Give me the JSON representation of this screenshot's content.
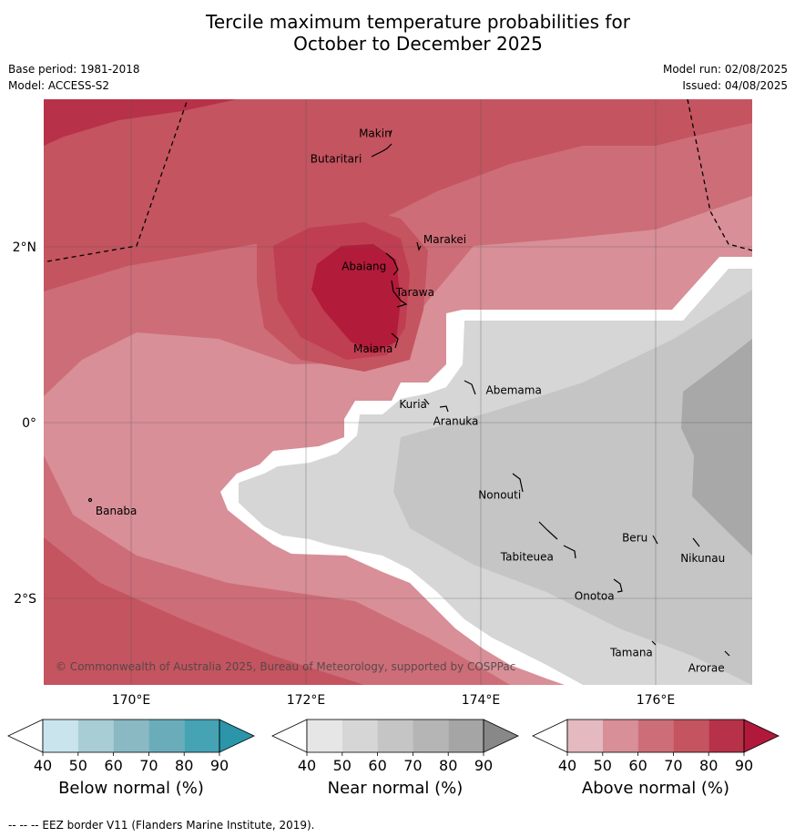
{
  "title_line1": "Tercile maximum temperature probabilities for",
  "title_line2": "October to December 2025",
  "base_period": "Base period: 1981-2018",
  "model": "Model: ACCESS-S2",
  "model_run": "Model run: 02/08/2025",
  "issued": "Issued: 04/08/2025",
  "copyright": "© Commonwealth of Australia 2025, Bureau of Meteorology, supported by COSPPac",
  "footer": "--  --  -- EEZ border V11 (Flanders Marine Institute, 2019).",
  "lon_ticks": [
    {
      "value": 170,
      "label": "170°E"
    },
    {
      "value": 172,
      "label": "172°E"
    },
    {
      "value": 174,
      "label": "174°E"
    },
    {
      "value": 176,
      "label": "176°E"
    }
  ],
  "lat_ticks": [
    {
      "value": 2,
      "label": "2°N"
    },
    {
      "value": 0,
      "label": "0°"
    },
    {
      "value": -2,
      "label": "2°S"
    }
  ],
  "islands": [
    {
      "name": "Makin",
      "lon": 172.98,
      "lat": 3.33
    },
    {
      "name": "Butaritari",
      "lon": 172.8,
      "lat": 3.05
    },
    {
      "name": "Marakei",
      "lon": 173.28,
      "lat": 2.0
    },
    {
      "name": "Abaiang",
      "lon": 172.95,
      "lat": 1.82
    },
    {
      "name": "Tarawa",
      "lon": 173.05,
      "lat": 1.4
    },
    {
      "name": "Maiana",
      "lon": 173.0,
      "lat": 0.92
    },
    {
      "name": "Abemama",
      "lon": 173.87,
      "lat": 0.38
    },
    {
      "name": "Kuria",
      "lon": 173.4,
      "lat": 0.23
    },
    {
      "name": "Aranuka",
      "lon": 173.6,
      "lat": 0.16
    },
    {
      "name": "Banaba",
      "lon": 169.53,
      "lat": -0.86
    },
    {
      "name": "Nonouti",
      "lon": 174.43,
      "lat": -0.68
    },
    {
      "name": "Tabiteuea",
      "lon": 174.8,
      "lat": -1.3
    },
    {
      "name": "Beru",
      "lon": 175.98,
      "lat": -1.33
    },
    {
      "name": "Nikunau",
      "lon": 176.45,
      "lat": -1.38
    },
    {
      "name": "Onotoa",
      "lon": 175.55,
      "lat": -1.8
    },
    {
      "name": "Tamana",
      "lon": 175.98,
      "lat": -2.5
    },
    {
      "name": "Arorae",
      "lon": 176.82,
      "lat": -2.65
    }
  ],
  "colorbars": [
    {
      "label": "Below normal (%)",
      "ticks": [
        "40",
        "50",
        "60",
        "70",
        "80",
        "90"
      ],
      "colors": [
        "#ffffff",
        "#c9e4ec",
        "#a9cdd4",
        "#8ab9c4",
        "#6bacbb",
        "#46a3b4",
        "#2b95aa"
      ]
    },
    {
      "label": "Near normal (%)",
      "ticks": [
        "40",
        "50",
        "60",
        "70",
        "80",
        "90"
      ],
      "colors": [
        "#ffffff",
        "#e6e6e6",
        "#d6d6d6",
        "#c5c5c5",
        "#b5b5b5",
        "#a5a5a5",
        "#888888"
      ]
    },
    {
      "label": "Above normal (%)",
      "ticks": [
        "40",
        "50",
        "60",
        "70",
        "80",
        "90"
      ],
      "colors": [
        "#ffffff",
        "#e4b9c0",
        "#d88f97",
        "#cd6d78",
        "#c4545f",
        "#b73148",
        "#b0193a"
      ]
    }
  ]
}
